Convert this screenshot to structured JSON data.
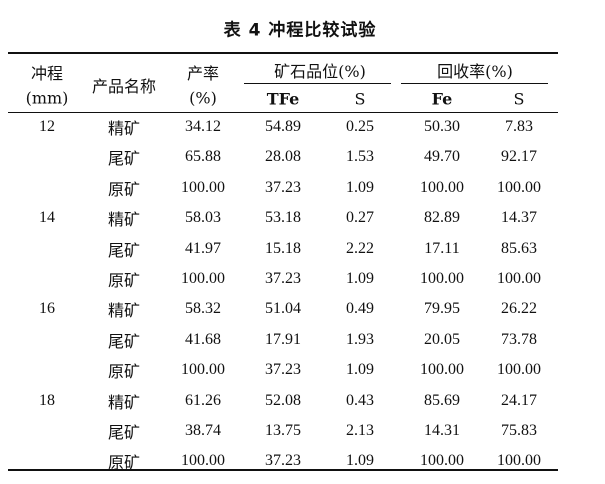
{
  "table": {
    "title": "表 4    冲程比较试验",
    "headers": {
      "stroke": "冲程",
      "stroke_unit": "(mm)",
      "product": "产品名称",
      "yield": "产率",
      "yield_unit": "(%)",
      "grade": "矿石品位(%)",
      "grade_tfe": "TFe",
      "grade_s": "S",
      "recovery": "回收率(%)",
      "recovery_fe": "Fe",
      "recovery_s": "S"
    },
    "rows": [
      {
        "stroke": "12",
        "product": "精矿",
        "yield": "34.12",
        "tfe": "54.89",
        "s": "0.25",
        "rec_fe": "50.30",
        "rec_s": "7.83"
      },
      {
        "stroke": "",
        "product": "尾矿",
        "yield": "65.88",
        "tfe": "28.08",
        "s": "1.53",
        "rec_fe": "49.70",
        "rec_s": "92.17"
      },
      {
        "stroke": "",
        "product": "原矿",
        "yield": "100.00",
        "tfe": "37.23",
        "s": "1.09",
        "rec_fe": "100.00",
        "rec_s": "100.00"
      },
      {
        "stroke": "14",
        "product": "精矿",
        "yield": "58.03",
        "tfe": "53.18",
        "s": "0.27",
        "rec_fe": "82.89",
        "rec_s": "14.37"
      },
      {
        "stroke": "",
        "product": "尾矿",
        "yield": "41.97",
        "tfe": "15.18",
        "s": "2.22",
        "rec_fe": "17.11",
        "rec_s": "85.63"
      },
      {
        "stroke": "",
        "product": "原矿",
        "yield": "100.00",
        "tfe": "37.23",
        "s": "1.09",
        "rec_fe": "100.00",
        "rec_s": "100.00"
      },
      {
        "stroke": "16",
        "product": "精矿",
        "yield": "58.32",
        "tfe": "51.04",
        "s": "0.49",
        "rec_fe": "79.95",
        "rec_s": "26.22"
      },
      {
        "stroke": "",
        "product": "尾矿",
        "yield": "41.68",
        "tfe": "17.91",
        "s": "1.93",
        "rec_fe": "20.05",
        "rec_s": "73.78"
      },
      {
        "stroke": "",
        "product": "原矿",
        "yield": "100.00",
        "tfe": "37.23",
        "s": "1.09",
        "rec_fe": "100.00",
        "rec_s": "100.00"
      },
      {
        "stroke": "18",
        "product": "精矿",
        "yield": "61.26",
        "tfe": "52.08",
        "s": "0.43",
        "rec_fe": "85.69",
        "rec_s": "24.17"
      },
      {
        "stroke": "",
        "product": "尾矿",
        "yield": "38.74",
        "tfe": "13.75",
        "s": "2.13",
        "rec_fe": "14.31",
        "rec_s": "75.83"
      },
      {
        "stroke": "",
        "product": "原矿",
        "yield": "100.00",
        "tfe": "37.23",
        "s": "1.09",
        "rec_fe": "100.00",
        "rec_s": "100.00"
      }
    ]
  }
}
